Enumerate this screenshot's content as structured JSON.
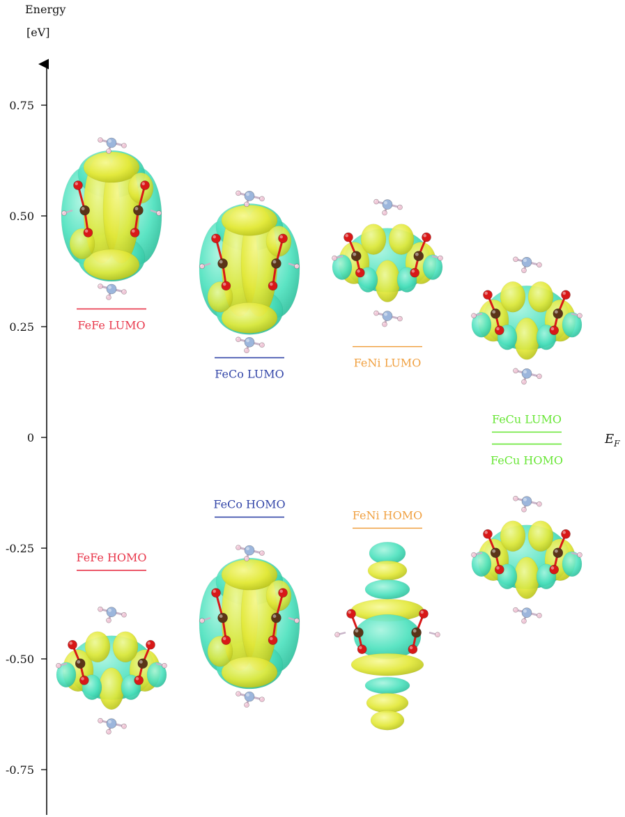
{
  "chart_data": {
    "type": "energy-level-diagram",
    "ylabel": "Energy",
    "yunit": "[eV]",
    "ylim": [
      -0.85,
      0.85
    ],
    "yticks": [
      0.75,
      0.5,
      0.25,
      0,
      -0.25,
      -0.5,
      -0.75
    ],
    "ytick_labels": [
      "0.75",
      "0.50",
      "0.25",
      "0",
      "-0.25",
      "-0.50",
      "-0.75"
    ],
    "fermi": {
      "value": 0,
      "label": "E",
      "subscript": "F"
    },
    "levels": [
      {
        "name": "FeFe LUMO",
        "system": "FeFe",
        "orbital": "LUMO",
        "energy": 0.29,
        "color": "#e8364a",
        "label_pos": "below"
      },
      {
        "name": "FeFe HOMO",
        "system": "FeFe",
        "orbital": "HOMO",
        "energy": -0.3,
        "color": "#e8364a",
        "label_pos": "above"
      },
      {
        "name": "FeCo LUMO",
        "system": "FeCo",
        "orbital": "LUMO",
        "energy": 0.18,
        "color": "#3346a8",
        "label_pos": "below"
      },
      {
        "name": "FeCo HOMO",
        "system": "FeCo",
        "orbital": "HOMO",
        "energy": -0.18,
        "color": "#3346a8",
        "label_pos": "above"
      },
      {
        "name": "FeNi LUMO",
        "system": "FeNi",
        "orbital": "LUMO",
        "energy": 0.205,
        "color": "#f0a040",
        "label_pos": "below"
      },
      {
        "name": "FeNi HOMO",
        "system": "FeNi",
        "orbital": "HOMO",
        "energy": -0.205,
        "color": "#f0a040",
        "label_pos": "above"
      },
      {
        "name": "FeCu LUMO",
        "system": "FeCu",
        "orbital": "LUMO",
        "energy": 0.012,
        "color": "#66e633",
        "label_pos": "above"
      },
      {
        "name": "FeCu HOMO",
        "system": "FeCu",
        "orbital": "HOMO",
        "energy": -0.015,
        "color": "#66e633",
        "label_pos": "below"
      }
    ],
    "orbitals": [
      {
        "name": "FeFe LUMO",
        "center_energy": 0.5,
        "shape": "tall"
      },
      {
        "name": "FeCo LUMO",
        "center_energy": 0.38,
        "shape": "tall"
      },
      {
        "name": "FeNi LUMO",
        "center_energy": 0.4,
        "shape": "ring"
      },
      {
        "name": "FeCu LUMO",
        "center_energy": 0.27,
        "shape": "ring"
      },
      {
        "name": "FeFe HOMO",
        "center_energy": -0.52,
        "shape": "ring"
      },
      {
        "name": "FeCo HOMO",
        "center_energy": -0.42,
        "shape": "tall"
      },
      {
        "name": "FeNi HOMO",
        "center_energy": -0.45,
        "shape": "column"
      },
      {
        "name": "FeCu HOMO",
        "center_energy": -0.27,
        "shape": "ring"
      }
    ],
    "colors": {
      "lobe_yellow": "#e6ec3c",
      "lobe_cyan": "#49e6c0",
      "oxygen": "#d81818",
      "carbon": "#5a3418",
      "nitrogen": "#9cb6dc",
      "hydrogen": "#f0c8d8"
    }
  }
}
